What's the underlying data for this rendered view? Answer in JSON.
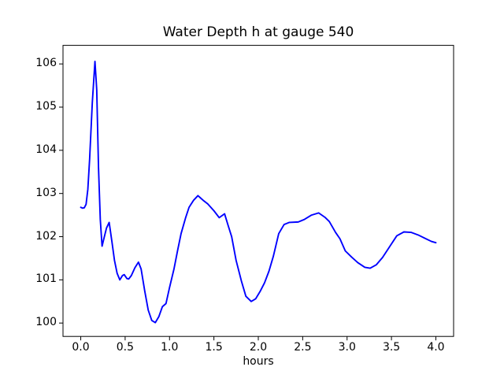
{
  "figure": {
    "background": "#ffffff",
    "spine_color": "#000000",
    "tick_color": "#000000"
  },
  "chart_data": {
    "type": "line",
    "title": "Water Depth h at gauge 540",
    "xlabel": "hours",
    "ylabel": "",
    "grid": false,
    "legend": null,
    "xlim": [
      -0.2,
      4.2
    ],
    "ylim": [
      99.69,
      106.43
    ],
    "xticks": [
      0.0,
      0.5,
      1.0,
      1.5,
      2.0,
      2.5,
      3.0,
      3.5,
      4.0
    ],
    "xtick_labels": [
      "0.0",
      "0.5",
      "1.0",
      "1.5",
      "2.0",
      "2.5",
      "3.0",
      "3.5",
      "4.0"
    ],
    "yticks": [
      100,
      101,
      102,
      103,
      104,
      105,
      106
    ],
    "ytick_labels": [
      "100",
      "101",
      "102",
      "103",
      "104",
      "105",
      "106"
    ],
    "series": [
      {
        "name": "water-depth-h",
        "color": "#0000ff",
        "x": [
          0.0,
          0.02,
          0.04,
          0.06,
          0.08,
          0.1,
          0.13,
          0.16,
          0.18,
          0.2,
          0.22,
          0.24,
          0.26,
          0.29,
          0.32,
          0.35,
          0.38,
          0.41,
          0.44,
          0.47,
          0.49,
          0.52,
          0.54,
          0.57,
          0.61,
          0.65,
          0.68,
          0.72,
          0.76,
          0.8,
          0.84,
          0.88,
          0.92,
          0.96,
          1.0,
          1.05,
          1.09,
          1.13,
          1.18,
          1.22,
          1.27,
          1.32,
          1.38,
          1.43,
          1.5,
          1.56,
          1.62,
          1.66,
          1.7,
          1.75,
          1.81,
          1.86,
          1.92,
          1.97,
          2.02,
          2.07,
          2.12,
          2.17,
          2.23,
          2.29,
          2.35,
          2.45,
          2.52,
          2.6,
          2.68,
          2.75,
          2.8,
          2.87,
          2.92,
          2.98,
          3.05,
          3.12,
          3.2,
          3.26,
          3.33,
          3.4,
          3.48,
          3.56,
          3.64,
          3.72,
          3.8,
          3.88,
          3.95,
          4.0
        ],
        "y": [
          102.68,
          102.66,
          102.67,
          102.75,
          103.1,
          103.8,
          105.1,
          106.06,
          105.4,
          103.6,
          102.4,
          101.78,
          101.95,
          102.2,
          102.33,
          101.9,
          101.45,
          101.15,
          101.0,
          101.1,
          101.12,
          101.03,
          101.02,
          101.1,
          101.28,
          101.41,
          101.25,
          100.75,
          100.3,
          100.06,
          100.01,
          100.15,
          100.38,
          100.45,
          100.82,
          101.25,
          101.67,
          102.07,
          102.43,
          102.68,
          102.84,
          102.95,
          102.84,
          102.76,
          102.6,
          102.44,
          102.53,
          102.26,
          102.0,
          101.45,
          100.97,
          100.62,
          100.5,
          100.56,
          100.73,
          100.93,
          101.2,
          101.55,
          102.07,
          102.28,
          102.33,
          102.34,
          102.4,
          102.5,
          102.55,
          102.45,
          102.35,
          102.1,
          101.95,
          101.67,
          101.53,
          101.4,
          101.29,
          101.27,
          101.35,
          101.52,
          101.77,
          102.02,
          102.11,
          102.1,
          102.04,
          101.96,
          101.89,
          101.86
        ]
      }
    ]
  }
}
